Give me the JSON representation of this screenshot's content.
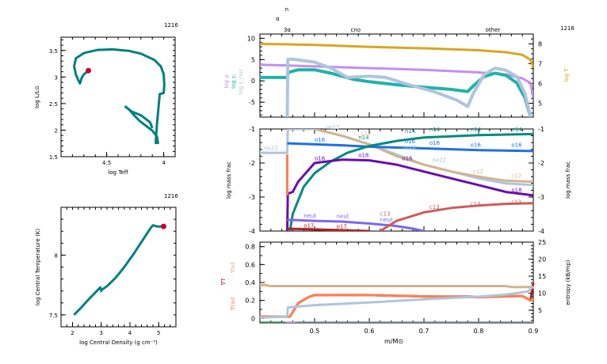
{
  "model_number": "1216",
  "chart_data": [
    {
      "id": "hr",
      "type": "line",
      "title": "1216",
      "xlabel": "log Teff",
      "ylabel": "log L/L⊙",
      "xlim": [
        4.9,
        3.9
      ],
      "ylim": [
        1.5,
        3.75
      ],
      "xticks": [
        4.5,
        4.0
      ],
      "xtick_labels": [
        "4.5",
        "4"
      ],
      "yticks": [
        1.5,
        2.0,
        2.5,
        3.0,
        3.5
      ],
      "ytick_labels": [
        "1.5",
        "2",
        "2.5",
        "3",
        "3.5"
      ],
      "track_color": "#008080",
      "marker_color": "#cc0033",
      "series": [
        {
          "name": "track",
          "x": [
            4.34,
            4.3,
            4.26,
            4.21,
            4.155,
            4.1,
            4.06,
            4.05,
            4.07,
            4.06,
            4.035,
            4.0,
            3.995,
            4.0,
            4.025,
            4.08,
            4.2,
            4.3,
            4.45,
            4.58,
            4.7,
            4.77,
            4.785,
            4.77,
            4.75,
            4.735,
            4.73,
            4.72,
            4.7,
            4.66
          ],
          "y": [
            2.45,
            2.38,
            2.28,
            2.17,
            2.08,
            1.99,
            1.88,
            1.76,
            1.76,
            2.1,
            2.68,
            2.7,
            2.85,
            3.05,
            3.2,
            3.32,
            3.44,
            3.49,
            3.52,
            3.51,
            3.45,
            3.35,
            3.2,
            3.05,
            2.95,
            2.88,
            2.9,
            2.98,
            3.05,
            3.12
          ]
        },
        {
          "name": "loop",
          "x": [
            4.34,
            4.28,
            4.2,
            4.12,
            4.1
          ],
          "y": [
            2.45,
            2.35,
            2.28,
            2.15,
            2.04
          ]
        }
      ],
      "current_point": {
        "x": 4.66,
        "y": 3.12
      }
    },
    {
      "id": "center",
      "type": "line",
      "title": "1216",
      "xlabel": "log Central Density (g cm⁻³)",
      "ylabel": "log Central Temperature (K)",
      "xlim": [
        1.6,
        5.6
      ],
      "ylim": [
        7.4,
        8.4
      ],
      "xticks": [
        2,
        3,
        4,
        5
      ],
      "xtick_labels": [
        "2",
        "3",
        "4",
        "5"
      ],
      "yticks": [
        7.5,
        8.0
      ],
      "ytick_labels": [
        "7.5",
        "8"
      ],
      "track_color": "#008080",
      "marker_color": "#cc0033",
      "series": [
        {
          "name": "track",
          "x": [
            2.05,
            2.3,
            2.6,
            2.85,
            2.97,
            3.0,
            3.02,
            3.2,
            3.5,
            3.8,
            4.1,
            4.4,
            4.7,
            4.8,
            4.95,
            5.17
          ],
          "y": [
            7.5,
            7.56,
            7.64,
            7.7,
            7.73,
            7.7,
            7.71,
            7.74,
            7.81,
            7.9,
            8.0,
            8.11,
            8.22,
            8.25,
            8.24,
            8.24
          ]
        }
      ],
      "current_point": {
        "x": 5.17,
        "y": 8.24
      }
    },
    {
      "id": "profile-top",
      "type": "line",
      "title": "1216",
      "xlim": [
        0.4,
        0.9
      ],
      "ylim_left": [
        -8.5,
        11
      ],
      "ylim_right": [
        4.3,
        8.5
      ],
      "left_yticks": [
        -5,
        0,
        5,
        10
      ],
      "left_ytick_labels": [
        "-5",
        "0",
        "5",
        "10"
      ],
      "right_yticks": [
        5,
        6,
        7,
        8
      ],
      "right_ytick_labels": [
        "5",
        "6",
        "7",
        "8"
      ],
      "left_labels": [
        {
          "text": "log ρ",
          "color": "#c48ff0"
        },
        {
          "text": "log εⱼ",
          "color": "#20b2aa"
        },
        {
          "text": "log ε_nuc",
          "color": "#b0c4de"
        }
      ],
      "right_label": {
        "text": "log T",
        "color": "#daa520"
      },
      "top_labels": [
        {
          "text": "3α",
          "x": 0.45
        },
        {
          "text": "α",
          "x": 0.447
        },
        {
          "text": "n",
          "x": 0.452
        },
        {
          "text": "cno",
          "x": 0.575
        },
        {
          "text": "other",
          "x": 0.826
        }
      ],
      "series": [
        {
          "name": "log T",
          "axis": "right",
          "color": "#daa520",
          "x": [
            0.4,
            0.45,
            0.5,
            0.6,
            0.7,
            0.8,
            0.85,
            0.88,
            0.895,
            0.9
          ],
          "y": [
            8.0,
            7.98,
            7.95,
            7.85,
            7.78,
            7.68,
            7.58,
            7.45,
            7.2,
            6.8
          ]
        },
        {
          "name": "log rho",
          "axis": "left",
          "color": "#c48ff0",
          "x": [
            0.4,
            0.45,
            0.5,
            0.6,
            0.7,
            0.8,
            0.85,
            0.88,
            0.895,
            0.9
          ],
          "y": [
            3.8,
            3.6,
            3.4,
            3.0,
            2.6,
            2.0,
            1.5,
            0.6,
            -0.5,
            -4
          ]
        },
        {
          "name": "log eps_nu",
          "axis": "left",
          "color": "#20b2aa",
          "x": [
            0.4,
            0.45,
            0.452,
            0.47,
            0.5,
            0.53,
            0.57,
            0.6,
            0.65,
            0.7,
            0.75,
            0.78,
            0.79,
            0.81,
            0.83,
            0.85,
            0.87,
            0.885,
            0.895
          ],
          "y": [
            0.8,
            0.8,
            2.0,
            2.6,
            2.6,
            1.8,
            0.4,
            -0.2,
            -0.9,
            -1.5,
            -2.0,
            -2.5,
            -1.2,
            1.0,
            1.8,
            1.3,
            -0.5,
            -4,
            -8.5
          ]
        },
        {
          "name": "log eps_nuc",
          "axis": "left",
          "color": "#b0c4de",
          "x": [
            0.45,
            0.451,
            0.46,
            0.5,
            0.53,
            0.56,
            0.6,
            0.63,
            0.67,
            0.72,
            0.76,
            0.78,
            0.79,
            0.81,
            0.83,
            0.85,
            0.87,
            0.885,
            0.895
          ],
          "y": [
            -8.5,
            5.0,
            5.1,
            4.4,
            3.0,
            0.8,
            1.1,
            0.8,
            -0.8,
            -2.6,
            -4.5,
            -6.0,
            -3.0,
            1.5,
            3.0,
            2.5,
            1.0,
            -3,
            -8.5
          ]
        }
      ]
    },
    {
      "id": "profile-abund",
      "type": "line",
      "xlim": [
        0.4,
        0.9
      ],
      "ylim": [
        -4,
        -1
      ],
      "yticks": [
        -4,
        -3,
        -2,
        -1
      ],
      "ytick_labels": [
        "-4",
        "-3",
        "-2",
        "-1"
      ],
      "ylabel": "log mass frac",
      "series": [
        {
          "name": "ne22",
          "color": "#b0c4de",
          "x": [
            0.4,
            0.45,
            0.451,
            0.5,
            0.55,
            0.6,
            0.65,
            0.7,
            0.75,
            0.8,
            0.85,
            0.9
          ],
          "y": [
            -1.7,
            -1.7,
            -1.0,
            -1.0,
            -1.2,
            -1.45,
            -1.75,
            -2.05,
            -2.25,
            -2.45,
            -2.6,
            -2.65
          ]
        },
        {
          "name": "c12",
          "color": "#d2b48c",
          "x": [
            0.5,
            0.55,
            0.6,
            0.65,
            0.7,
            0.75,
            0.8,
            0.85,
            0.9
          ],
          "y": [
            -1.0,
            -1.2,
            -1.45,
            -1.8,
            -2.05,
            -2.25,
            -2.4,
            -2.52,
            -2.55
          ]
        },
        {
          "name": "o16",
          "color": "#1e6fe8",
          "x": [
            0.45,
            0.5,
            0.55,
            0.6,
            0.7,
            0.8,
            0.9
          ],
          "y": [
            -1.42,
            -1.45,
            -1.48,
            -1.52,
            -1.57,
            -1.62,
            -1.65
          ]
        },
        {
          "name": "n14",
          "color": "#008b80",
          "x": [
            0.455,
            0.46,
            0.48,
            0.5,
            0.53,
            0.56,
            0.6,
            0.65,
            0.7,
            0.8,
            0.9
          ],
          "y": [
            -4.0,
            -3.5,
            -2.7,
            -2.3,
            -1.95,
            -1.7,
            -1.5,
            -1.35,
            -1.25,
            -1.18,
            -1.15
          ]
        },
        {
          "name": "o18",
          "color": "#6a0dad",
          "x": [
            0.45,
            0.451,
            0.46,
            0.47,
            0.5,
            0.55,
            0.6,
            0.65,
            0.7,
            0.75,
            0.8,
            0.85,
            0.9
          ],
          "y": [
            -4.0,
            -2.9,
            -2.85,
            -2.55,
            -2.0,
            -1.9,
            -1.92,
            -2.05,
            -2.25,
            -2.45,
            -2.65,
            -2.85,
            -2.95
          ]
        },
        {
          "name": "he3",
          "color": "#ff7f50",
          "x": [
            0.45,
            0.45
          ],
          "y": [
            -1.75,
            -2.95
          ]
        },
        {
          "name": "neut",
          "color": "#7b68ee",
          "x": [
            0.45,
            0.5,
            0.55,
            0.6,
            0.65,
            0.68,
            0.7
          ],
          "y": [
            -3.67,
            -3.7,
            -3.72,
            -3.78,
            -3.85,
            -3.93,
            -4.0
          ]
        },
        {
          "name": "o17",
          "color": "#b22222",
          "x": [
            0.45,
            0.5,
            0.6
          ],
          "y": [
            -3.93,
            -3.95,
            -4.0
          ]
        },
        {
          "name": "c13",
          "color": "#cd5c5c",
          "x": [
            0.62,
            0.65,
            0.7,
            0.75,
            0.8,
            0.85,
            0.9
          ],
          "y": [
            -4.0,
            -3.7,
            -3.45,
            -3.32,
            -3.25,
            -3.2,
            -3.18
          ]
        }
      ],
      "labels": [
        {
          "text": "ne22",
          "color": "#b0c4de",
          "x": 0.407,
          "y": -1.62
        },
        {
          "text": "ne22",
          "color": "#b0c4de",
          "x": 0.52,
          "y": -1.0
        },
        {
          "text": "o16",
          "color": "#1e6fe8",
          "x": 0.5,
          "y": -1.37
        },
        {
          "text": "o16",
          "color": "#6a0dad",
          "x": 0.5,
          "y": -1.92
        },
        {
          "text": "o18",
          "color": "#6a0dad",
          "x": 0.58,
          "y": -1.83
        },
        {
          "text": "o16",
          "color": "#6a0dad",
          "x": 0.66,
          "y": -1.92
        },
        {
          "text": "c12",
          "color": "#d2b48c",
          "x": 0.585,
          "y": -1.18
        },
        {
          "text": "n14",
          "color": "#008b80",
          "x": 0.58,
          "y": -1.3
        },
        {
          "text": "n14",
          "color": "#008b80",
          "x": 0.665,
          "y": -1.12
        },
        {
          "text": "n14",
          "color": "#008b80",
          "x": 0.71,
          "y": -1.07
        },
        {
          "text": "n14",
          "color": "#008b80",
          "x": 0.785,
          "y": -1.07
        },
        {
          "text": "n14",
          "color": "#008b80",
          "x": 0.86,
          "y": -1.07
        },
        {
          "text": "o16",
          "color": "#1e6fe8",
          "x": 0.665,
          "y": -1.42
        },
        {
          "text": "o16",
          "color": "#1e6fe8",
          "x": 0.71,
          "y": -1.47
        },
        {
          "text": "o16",
          "color": "#1e6fe8",
          "x": 0.785,
          "y": -1.52
        },
        {
          "text": "o16",
          "color": "#1e6fe8",
          "x": 0.86,
          "y": -1.52
        },
        {
          "text": "ne22",
          "color": "#b0c4de",
          "x": 0.66,
          "y": -1.58
        },
        {
          "text": "ne22",
          "color": "#b0c4de",
          "x": 0.715,
          "y": -1.97
        },
        {
          "text": "c12",
          "color": "#d2b48c",
          "x": 0.79,
          "y": -2.3
        },
        {
          "text": "c12",
          "color": "#d2b48c",
          "x": 0.86,
          "y": -2.43
        },
        {
          "text": "o18",
          "color": "#6a0dad",
          "x": 0.86,
          "y": -2.85
        },
        {
          "text": "c13",
          "color": "#cd5c5c",
          "x": 0.62,
          "y": -3.55
        },
        {
          "text": "c13",
          "color": "#cd5c5c",
          "x": 0.71,
          "y": -3.35
        },
        {
          "text": "c13",
          "color": "#cd5c5c",
          "x": 0.785,
          "y": -3.25
        },
        {
          "text": "c13",
          "color": "#cd5c5c",
          "x": 0.86,
          "y": -3.2
        },
        {
          "text": "neut",
          "color": "#7b68ee",
          "x": 0.48,
          "y": -3.6
        },
        {
          "text": "neut",
          "color": "#7b68ee",
          "x": 0.54,
          "y": -3.62
        },
        {
          "text": "neut",
          "color": "#7b68ee",
          "x": 0.62,
          "y": -3.72
        },
        {
          "text": "o17",
          "color": "#b22222",
          "x": 0.48,
          "y": -3.9
        },
        {
          "text": "o17",
          "color": "#b22222",
          "x": 0.54,
          "y": -3.92
        }
      ],
      "right_ylabel": "log mass frac"
    },
    {
      "id": "profile-grad",
      "type": "line",
      "xlim": [
        0.4,
        0.9
      ],
      "xticks": [
        0.5,
        0.6,
        0.7,
        0.8,
        0.9
      ],
      "xtick_labels": [
        "0.5",
        "0.6",
        "0.7",
        "0.8",
        "0.9"
      ],
      "xlabel": "m/M⊙",
      "ylim_left": [
        -0.05,
        0.85
      ],
      "ylim_right": [
        1.3,
        25
      ],
      "left_yticks": [
        0,
        0.2,
        0.4,
        0.6,
        0.8
      ],
      "left_ytick_labels": [
        "0",
        "0.2",
        "0.4",
        "0.6",
        "0.8"
      ],
      "right_yticks": [
        5,
        10,
        15,
        20,
        25
      ],
      "right_ytick_labels": [
        "5",
        "10",
        "15",
        "20",
        "25"
      ],
      "left_labels": [
        {
          "text": "∇ad",
          "color": "#d2b48c"
        },
        {
          "text": "∇T",
          "color": "#b22222"
        },
        {
          "text": "∇rad",
          "color": "#ff7f50"
        }
      ],
      "right_label": {
        "text": "entropy (kB/mp)",
        "color": "#000000"
      },
      "series": [
        {
          "name": "grad_ad",
          "axis": "left",
          "color": "#d2b48c",
          "x": [
            0.4,
            0.41,
            0.42,
            0.5,
            0.6,
            0.7,
            0.8,
            0.85,
            0.86,
            0.9
          ],
          "y": [
            0.37,
            0.37,
            0.36,
            0.36,
            0.36,
            0.36,
            0.36,
            0.36,
            0.35,
            0.35
          ]
        },
        {
          "name": "grad_T",
          "axis": "left",
          "color": "#b22222",
          "x": [
            0.4,
            0.45,
            0.455,
            0.47,
            0.49,
            0.5,
            0.6,
            0.7,
            0.8,
            0.88,
            0.895,
            0.9
          ],
          "y": [
            0.02,
            0.02,
            0.02,
            0.17,
            0.24,
            0.26,
            0.26,
            0.245,
            0.24,
            0.25,
            0.2,
            0.4
          ]
        },
        {
          "name": "grad_rad",
          "axis": "left",
          "color": "#ff7f50",
          "x": [
            0.4,
            0.45,
            0.455,
            0.47,
            0.49,
            0.5,
            0.6,
            0.7,
            0.8,
            0.88,
            0.895,
            0.9
          ],
          "y": [
            0.02,
            0.02,
            0.02,
            0.17,
            0.24,
            0.26,
            0.26,
            0.245,
            0.235,
            0.25,
            0.2,
            0.22
          ]
        },
        {
          "name": "entropy",
          "axis": "right",
          "color": "#b0c4de",
          "x": [
            0.4,
            0.45,
            0.451,
            0.5,
            0.6,
            0.7,
            0.8,
            0.85,
            0.89,
            0.9
          ],
          "y": [
            2.8,
            3.2,
            5.8,
            6.5,
            7.3,
            8.2,
            9.0,
            9.6,
            10.5,
            12
          ]
        },
        {
          "name": "conv_mixing",
          "axis": "left",
          "color": "#708090",
          "x": [
            0.45,
            0.9
          ],
          "y": [
            -0.045,
            -0.045
          ]
        },
        {
          "name": "conv_core",
          "axis": "left",
          "color": "#2e8b57",
          "x": [
            0.4,
            0.447
          ],
          "y": [
            -0.045,
            -0.045
          ]
        },
        {
          "name": "overshoot",
          "axis": "left",
          "color": "#c48ff0",
          "x": [
            0.449,
            0.465
          ],
          "y": [
            -0.045,
            -0.045
          ]
        }
      ]
    }
  ]
}
